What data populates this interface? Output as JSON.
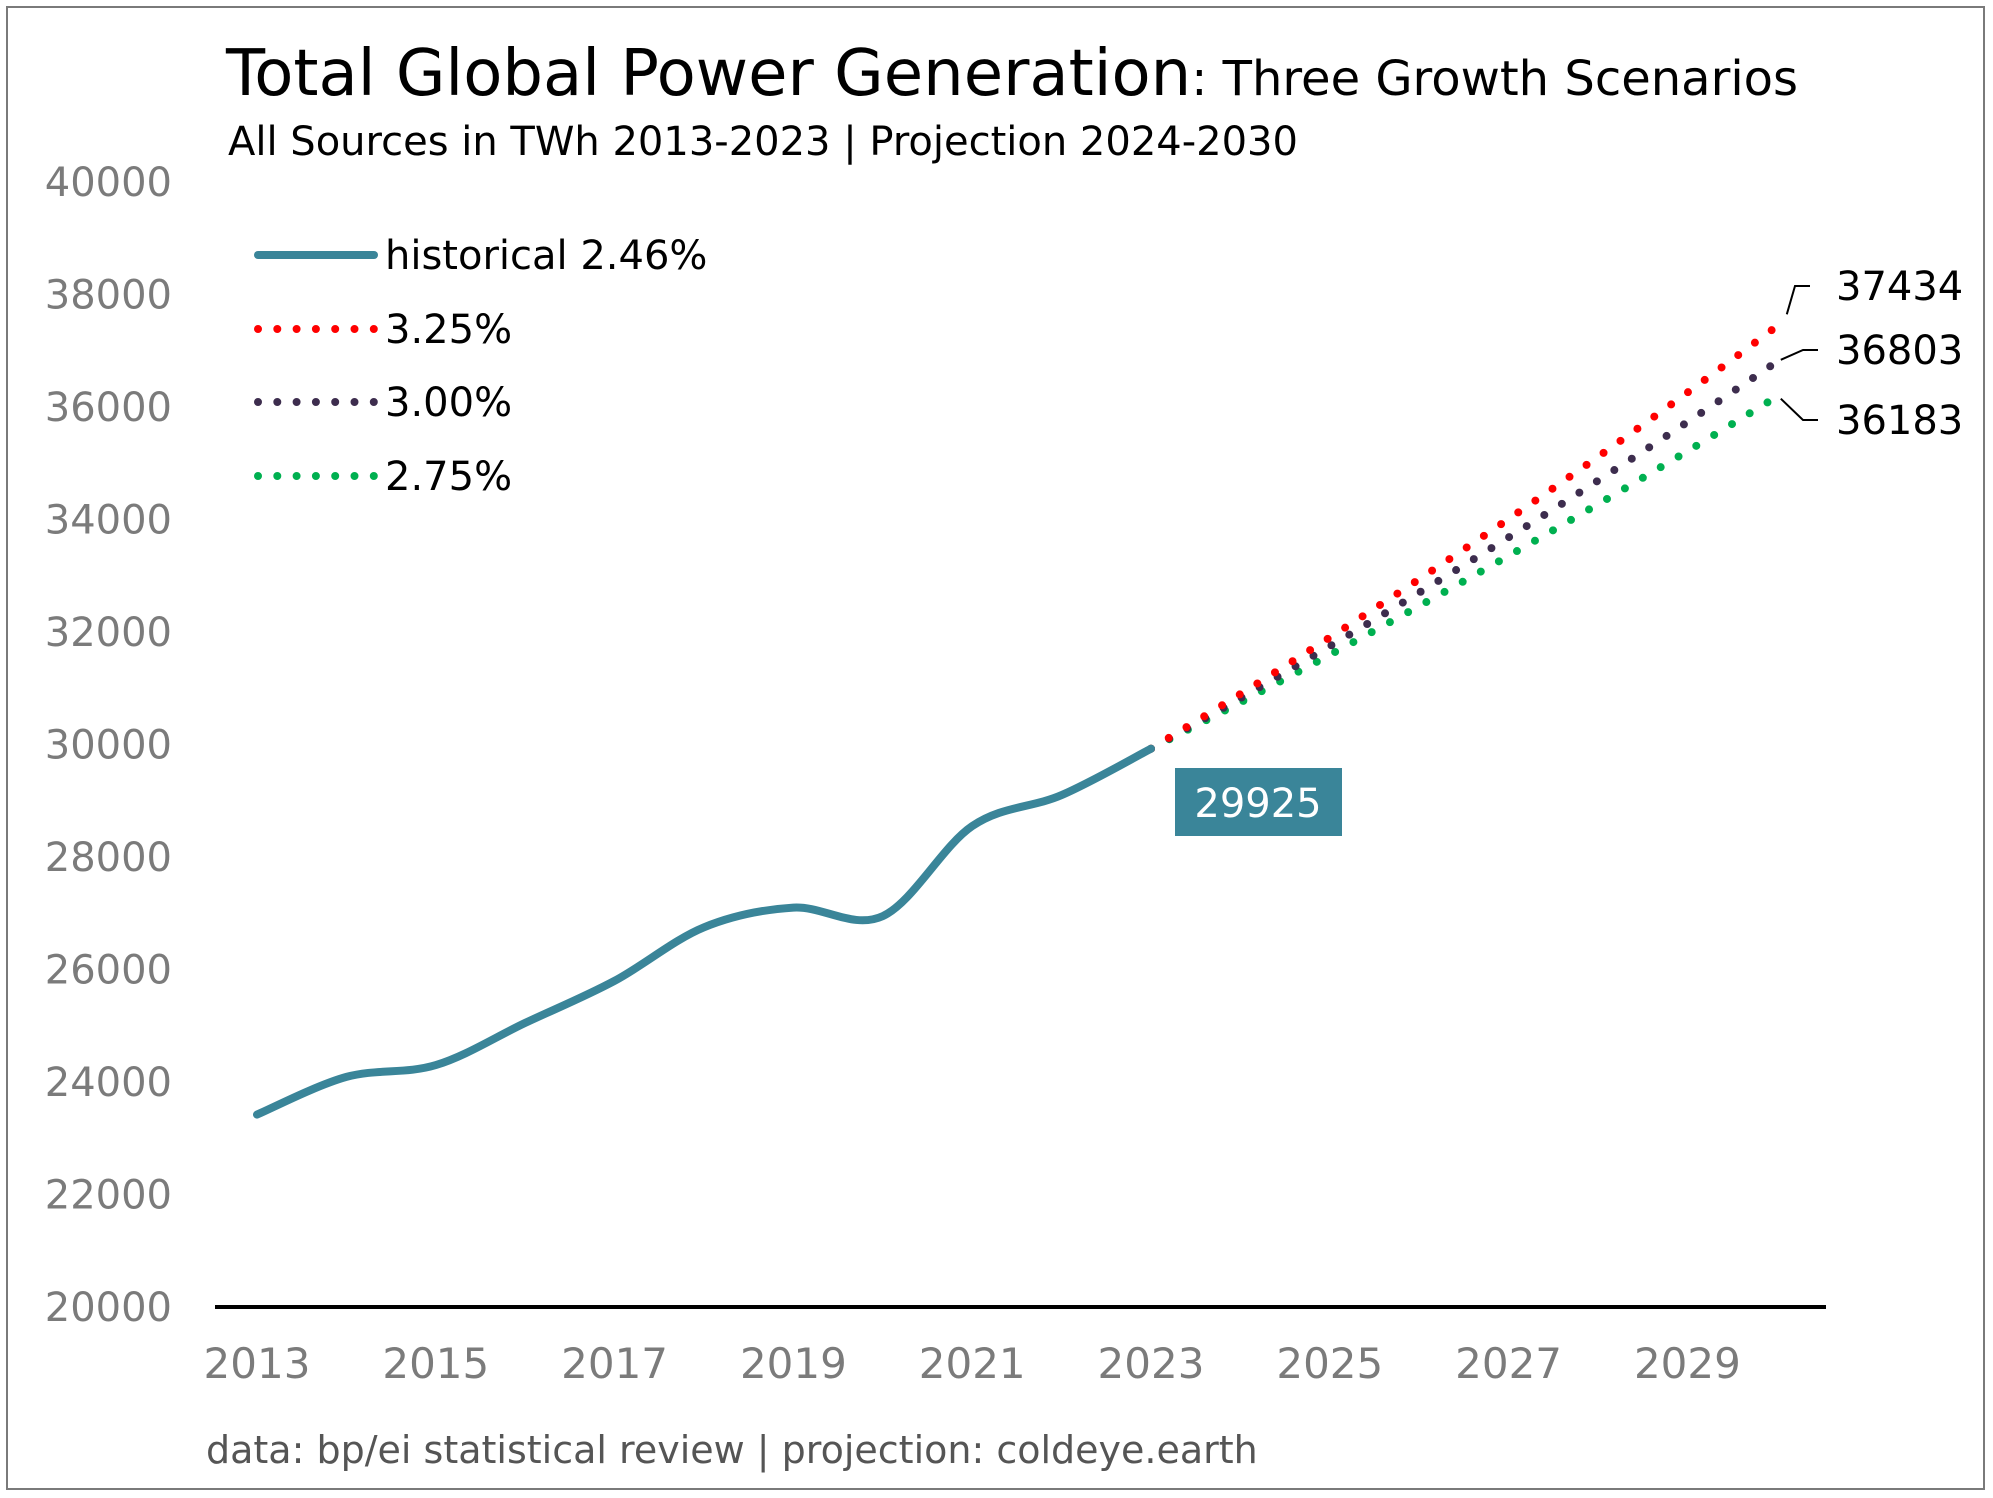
{
  "chart_data": {
    "type": "line",
    "title": "Total Global Power Generation",
    "title_suffix": ": Three Growth Scenarios",
    "subtitle": "All Sources in TWh 2013-2023 | Projection 2024-2030",
    "source": "data: bp/ei statistical review | projection: coldeye.earth",
    "xlabel": "",
    "ylabel": "",
    "xlim": [
      2013,
      2030.5
    ],
    "ylim": [
      20000,
      40000
    ],
    "x_ticks": [
      "2013",
      "2015",
      "2017",
      "2019",
      "2021",
      "2023",
      "2025",
      "2027",
      "2029"
    ],
    "y_ticks": [
      "20000",
      "22000",
      "24000",
      "26000",
      "28000",
      "30000",
      "32000",
      "34000",
      "36000",
      "38000",
      "40000"
    ],
    "grid": false,
    "legend_position": "top-left",
    "series": [
      {
        "name": "historical 2.46%",
        "style": "solid",
        "color": "#3a8599",
        "x": [
          2013,
          2014,
          2015,
          2016,
          2017,
          2018,
          2019,
          2020,
          2021,
          2022,
          2023
        ],
        "y": [
          23420,
          24090,
          24300,
          25050,
          25800,
          26750,
          27100,
          26950,
          28550,
          29100,
          29925
        ]
      },
      {
        "name": "3.25%",
        "style": "dotted",
        "color": "#ff0000",
        "x": [
          2023,
          2024,
          2025,
          2026,
          2027,
          2028,
          2029,
          2030
        ],
        "y": [
          29925,
          30898,
          31902,
          32939,
          34009,
          35115,
          36256,
          37434
        ]
      },
      {
        "name": "3.00%",
        "style": "dotted",
        "color": "#3d2d4e",
        "x": [
          2023,
          2024,
          2025,
          2026,
          2027,
          2028,
          2029,
          2030
        ],
        "y": [
          29925,
          30823,
          31747,
          32700,
          33681,
          34691,
          35732,
          36803
        ]
      },
      {
        "name": "2.75%",
        "style": "dotted",
        "color": "#00b050",
        "x": [
          2023,
          2024,
          2025,
          2026,
          2027,
          2028,
          2029,
          2030
        ],
        "y": [
          29925,
          30748,
          31594,
          32462,
          33355,
          34272,
          35215,
          36183
        ]
      }
    ],
    "annotations": [
      {
        "label": "29925",
        "x": 2023,
        "y": 29925,
        "series": "historical 2.46%"
      },
      {
        "label": "37434",
        "x": 2030,
        "y": 37434,
        "series": "3.25%"
      },
      {
        "label": "36803",
        "x": 2030,
        "y": 36803,
        "series": "3.00%"
      },
      {
        "label": "36183",
        "x": 2030,
        "y": 36183,
        "series": "2.75%"
      }
    ]
  }
}
